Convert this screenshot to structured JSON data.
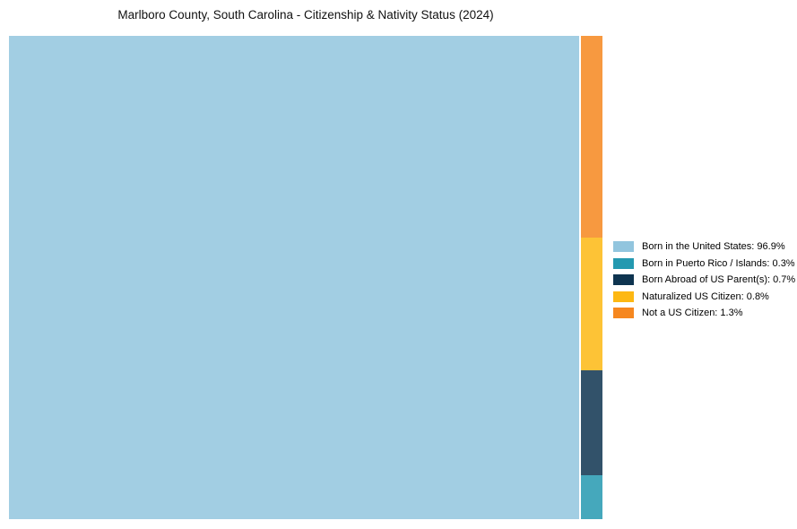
{
  "chart_data": {
    "type": "treemap",
    "title": "Marlboro County, South Carolina - Citizenship & Nativity Status (2024)",
    "legend_position": "right",
    "tile_opacity": 0.85,
    "background_color": "#ffffff",
    "items": [
      {
        "label": "Born in the United States",
        "value_pct": 96.9,
        "color": "#92c5de",
        "legend_text": "Born in the United States: 96.9%"
      },
      {
        "label": "Born in Puerto Rico / Islands",
        "value_pct": 0.3,
        "color": "#2499b0",
        "legend_text": "Born in Puerto Rico / Islands: 0.3%"
      },
      {
        "label": "Born Abroad of US Parent(s)",
        "value_pct": 0.7,
        "color": "#0e3450",
        "legend_text": "Born Abroad of US Parent(s): 0.7%"
      },
      {
        "label": "Naturalized US Citizen",
        "value_pct": 0.8,
        "color": "#fdb813",
        "legend_text": "Naturalized US Citizen: 0.8%"
      },
      {
        "label": "Not a US Citizen",
        "value_pct": 1.3,
        "color": "#f6871f",
        "legend_text": "Not a US Citizen: 1.3%"
      }
    ]
  }
}
